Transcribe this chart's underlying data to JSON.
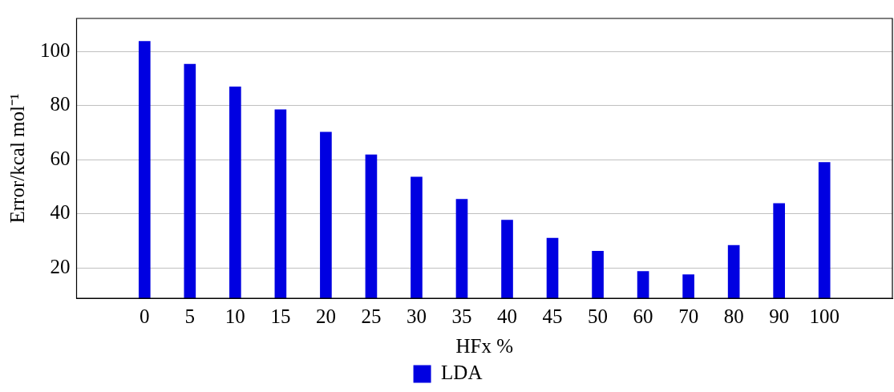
{
  "chart_data": {
    "type": "bar",
    "xlabel": "HFx %",
    "ylabel": "Error/kcal mol⁻¹",
    "categories": [
      "0",
      "5",
      "10",
      "15",
      "20",
      "25",
      "30",
      "35",
      "40",
      "45",
      "50",
      "60",
      "70",
      "80",
      "90",
      "100"
    ],
    "series": [
      {
        "name": "LDA",
        "color": "#0000e1",
        "values": [
          103.7,
          95.3,
          86.9,
          78.5,
          70.2,
          61.8,
          53.6,
          45.4,
          37.7,
          31.0,
          26.2,
          18.7,
          17.5,
          28.3,
          43.8,
          59.0
        ]
      }
    ],
    "ylim": [
      8.8,
      112.2
    ],
    "yticks": [
      20,
      40,
      60,
      80,
      100
    ],
    "grid": "y",
    "legend": "bottom"
  }
}
